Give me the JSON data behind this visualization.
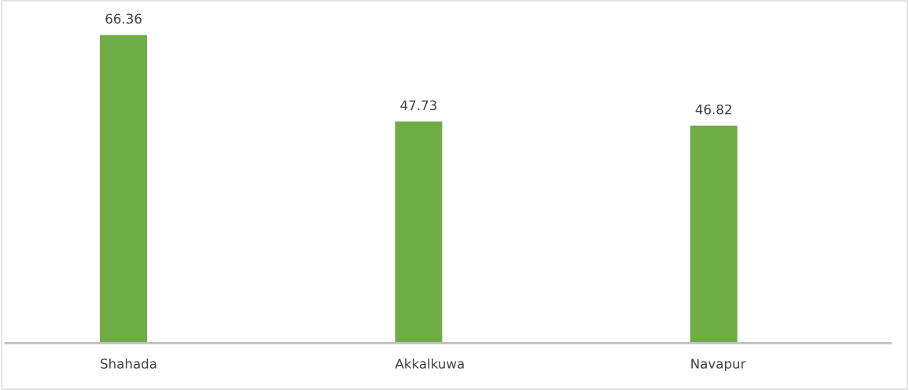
{
  "chart_data": {
    "type": "bar",
    "categories": [
      "Shahada",
      "Akkalkuwa",
      "Navapur"
    ],
    "values": [
      66.36,
      47.73,
      46.82
    ],
    "color": "#70ad47",
    "data_labels": true,
    "grid": false,
    "legend": false
  }
}
